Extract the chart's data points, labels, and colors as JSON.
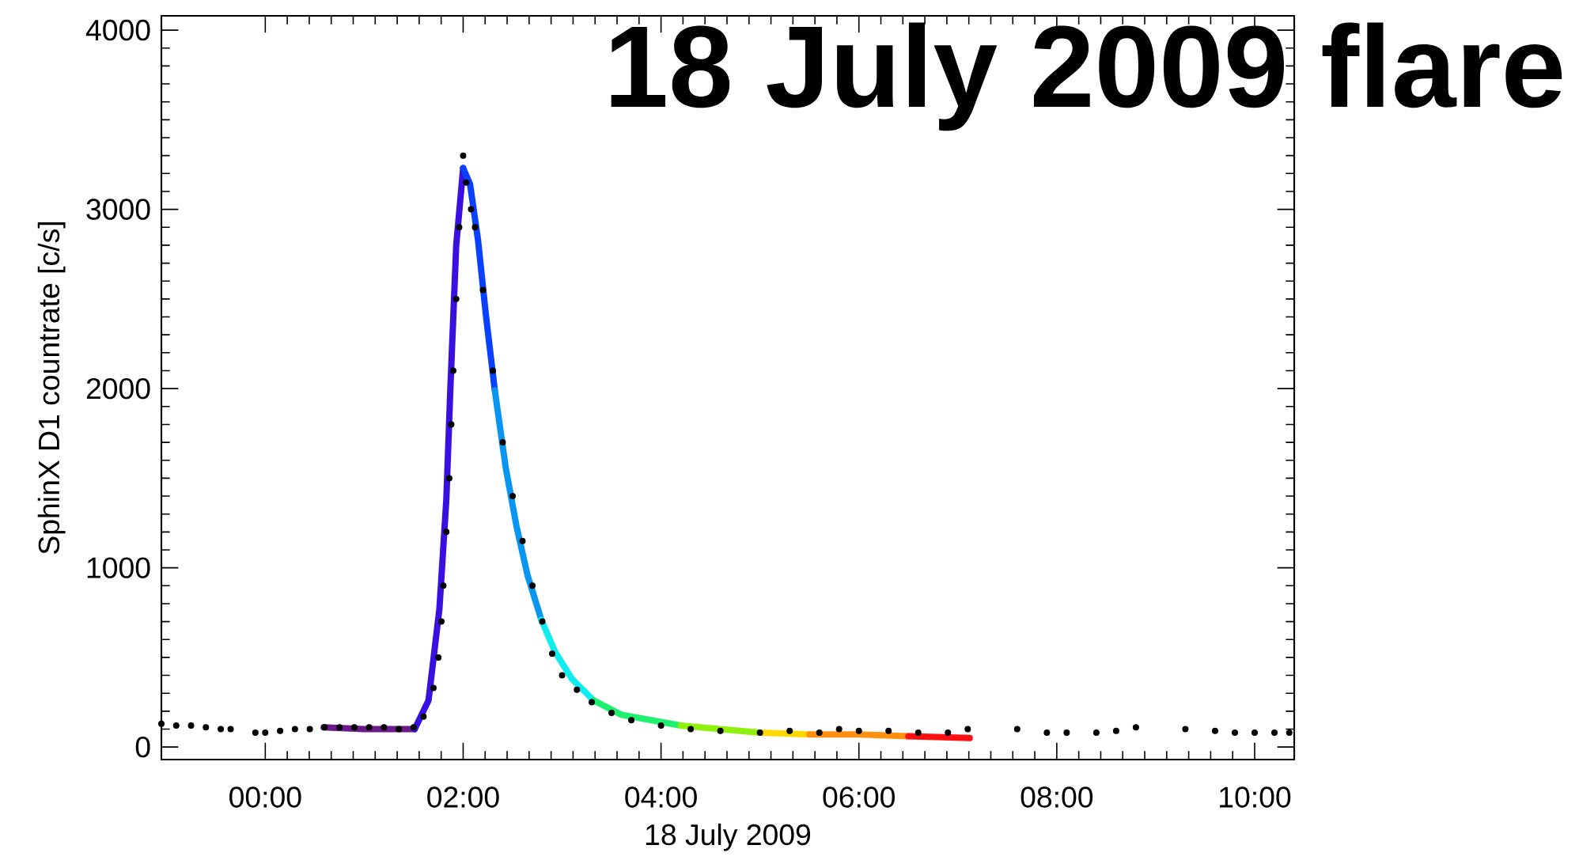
{
  "chart_data": {
    "type": "line",
    "title": "18 July 2009 flare",
    "xlabel": "18 July 2009",
    "ylabel": "SphinX D1 countrate [c/s]",
    "xlim": [
      -1.05,
      10.4
    ],
    "ylim": [
      -70,
      4080
    ],
    "xticks": [
      {
        "value": 0,
        "label": "00:00"
      },
      {
        "value": 2,
        "label": "02:00"
      },
      {
        "value": 4,
        "label": "04:00"
      },
      {
        "value": 6,
        "label": "06:00"
      },
      {
        "value": 8,
        "label": "08:00"
      },
      {
        "value": 10,
        "label": "10:00"
      }
    ],
    "yticks": [
      0,
      1000,
      2000,
      3000,
      4000
    ],
    "series": [
      {
        "type": "scatter",
        "marker": "circle",
        "color": "#000000",
        "x": [
          -1.05,
          -0.9,
          -0.75,
          -0.6,
          -0.45,
          -0.35,
          -0.1,
          0.0,
          0.15,
          0.3,
          0.45,
          0.6,
          0.75,
          0.9,
          1.05,
          1.2,
          1.35,
          1.5,
          1.6,
          1.7,
          1.75,
          1.78,
          1.8,
          1.83,
          1.86,
          1.88,
          1.9,
          1.93,
          1.96,
          2.0,
          2.03,
          2.08,
          2.12,
          2.2,
          2.3,
          2.4,
          2.5,
          2.6,
          2.7,
          2.8,
          2.9,
          3.0,
          3.15,
          3.3,
          3.5,
          3.7,
          4.0,
          4.3,
          4.6,
          5.0,
          5.3,
          5.6,
          5.8,
          6.0,
          6.3,
          6.6,
          6.9,
          7.1,
          7.6,
          7.9,
          8.1,
          8.4,
          8.6,
          8.8,
          9.3,
          9.6,
          9.8,
          10.0,
          10.2,
          10.35
        ],
        "values": [
          130,
          120,
          120,
          110,
          100,
          100,
          80,
          80,
          90,
          100,
          100,
          110,
          110,
          110,
          110,
          110,
          100,
          110,
          170,
          330,
          500,
          700,
          900,
          1200,
          1500,
          1800,
          2100,
          2500,
          2900,
          3300,
          3150,
          3000,
          2900,
          2550,
          2100,
          1700,
          1400,
          1150,
          900,
          700,
          520,
          400,
          320,
          250,
          190,
          150,
          120,
          100,
          90,
          80,
          90,
          80,
          100,
          90,
          90,
          80,
          80,
          100,
          100,
          80,
          80,
          80,
          90,
          110,
          100,
          90,
          80,
          80,
          80,
          80
        ]
      },
      {
        "color": "#6a1a8a",
        "x": [
          0.59,
          1.0,
          1.51
        ],
        "values": [
          110,
          100,
          100
        ]
      },
      {
        "color": "#3a10e0",
        "x": [
          1.51,
          1.65,
          1.76,
          1.83,
          1.87,
          1.93,
          2.0
        ],
        "values": [
          100,
          260,
          770,
          1380,
          1990,
          2800,
          3230
        ]
      },
      {
        "color": "#0a40ff",
        "x": [
          2.0,
          2.07,
          2.15,
          2.23,
          2.32
        ],
        "values": [
          3230,
          3140,
          2830,
          2410,
          1990
        ]
      },
      {
        "color": "#0a96f0",
        "x": [
          2.32,
          2.43,
          2.54,
          2.65,
          2.79
        ],
        "values": [
          1990,
          1560,
          1230,
          960,
          710
        ]
      },
      {
        "color": "#10ecf0",
        "x": [
          2.79,
          2.93,
          3.1,
          3.32
        ],
        "values": [
          710,
          530,
          380,
          260
        ]
      },
      {
        "color": "#20f070",
        "x": [
          3.32,
          3.6,
          4.2
        ],
        "values": [
          260,
          180,
          120
        ]
      },
      {
        "color": "#90f010",
        "x": [
          4.2,
          5.0
        ],
        "values": [
          120,
          80
        ]
      },
      {
        "color": "#ffd800",
        "x": [
          5.0,
          5.5
        ],
        "values": [
          80,
          70
        ]
      },
      {
        "color": "#ff9010",
        "x": [
          5.5,
          6.0,
          6.5
        ],
        "values": [
          70,
          70,
          60
        ]
      },
      {
        "color": "#ff1010",
        "x": [
          6.5,
          7.12
        ],
        "values": [
          60,
          50
        ]
      }
    ]
  }
}
